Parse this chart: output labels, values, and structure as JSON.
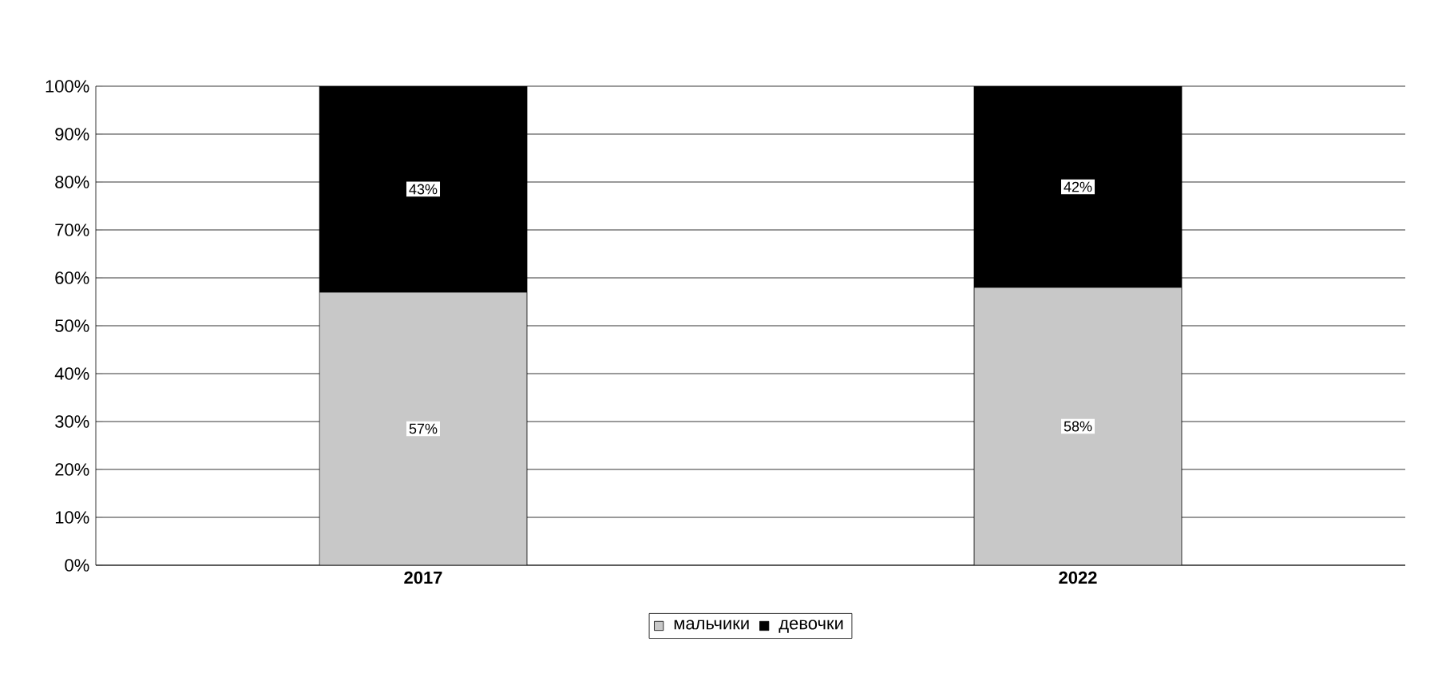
{
  "chart_data": {
    "type": "bar",
    "stacked": true,
    "categories": [
      "2017",
      "2022"
    ],
    "series": [
      {
        "name": "мальчики",
        "color": "#c8c8c8",
        "values": [
          57,
          58
        ],
        "value_labels": [
          "57%",
          "58%"
        ]
      },
      {
        "name": "девочки",
        "color": "#000000",
        "values": [
          43,
          42
        ],
        "value_labels": [
          "43%",
          "42%"
        ]
      }
    ],
    "ylim": [
      0,
      100
    ],
    "yticks": [
      {
        "value": 0,
        "label": "0%"
      },
      {
        "value": 10,
        "label": "10%"
      },
      {
        "value": 20,
        "label": "20%"
      },
      {
        "value": 30,
        "label": "30%"
      },
      {
        "value": 40,
        "label": "40%"
      },
      {
        "value": 50,
        "label": "50%"
      },
      {
        "value": 60,
        "label": "60%"
      },
      {
        "value": 70,
        "label": "70%"
      },
      {
        "value": 80,
        "label": "80%"
      },
      {
        "value": 90,
        "label": "90%"
      },
      {
        "value": 100,
        "label": "100%"
      }
    ],
    "grid": "y",
    "legend": "bottom"
  }
}
